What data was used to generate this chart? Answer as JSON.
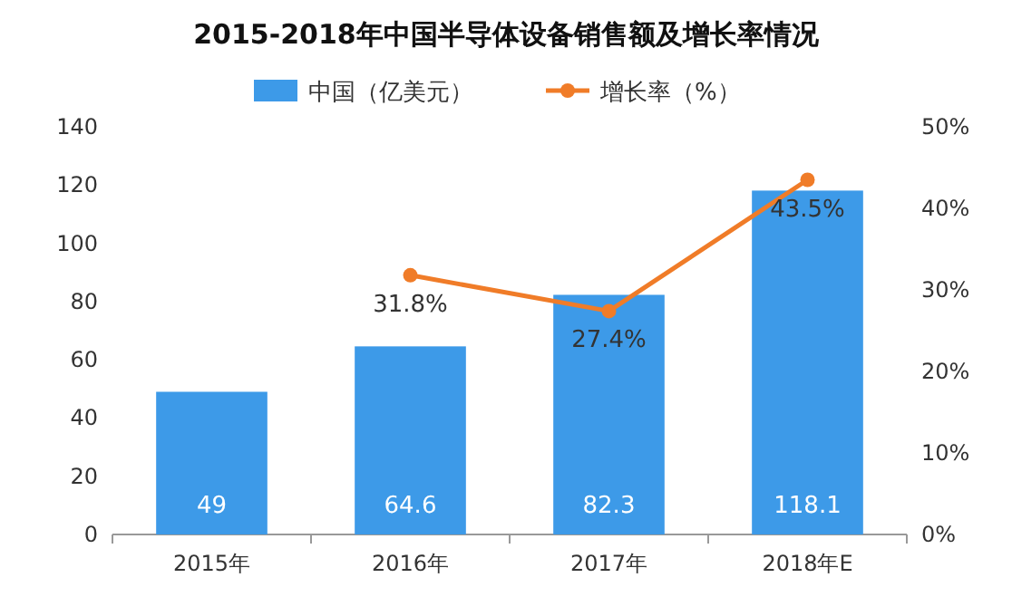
{
  "chart_data": {
    "type": "bar",
    "title": "2015-2018年中国半导体设备销售额及增长率情况",
    "legend": "top",
    "categories": [
      "2015年",
      "2016年",
      "2017年",
      "2018年E"
    ],
    "series": [
      {
        "name": "中国（亿美元）",
        "color": "#3d9ae8",
        "values": [
          49,
          64.6,
          82.3,
          118.1
        ],
        "value_labels": [
          "49",
          "64.6",
          "82.3",
          "118.1"
        ]
      },
      {
        "name": "增长率（%）",
        "type": "line",
        "axis": "y2",
        "marker": "circle",
        "color": "#f07c28",
        "values": [
          null,
          31.8,
          27.4,
          43.5
        ],
        "value_labels": [
          null,
          "31.8%",
          "27.4%",
          "43.5%"
        ]
      }
    ],
    "ylim": [
      0,
      140
    ],
    "yticks": [
      0,
      20,
      40,
      60,
      80,
      100,
      120,
      140
    ],
    "y2lim": [
      0,
      50
    ],
    "y2ticks": [
      {
        "value": 0,
        "label": "0%"
      },
      {
        "value": 10,
        "label": "10%"
      },
      {
        "value": 20,
        "label": "20%"
      },
      {
        "value": 30,
        "label": "30%"
      },
      {
        "value": 40,
        "label": "40%"
      },
      {
        "value": 50,
        "label": "50%"
      }
    ]
  }
}
